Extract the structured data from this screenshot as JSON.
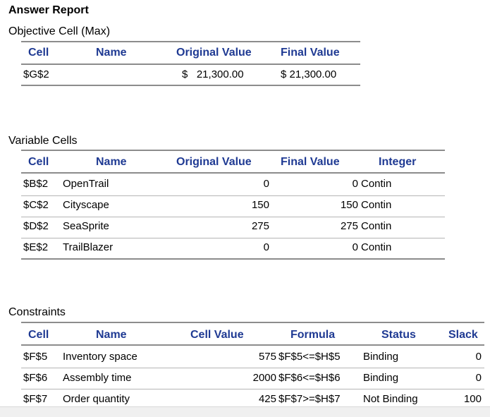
{
  "report": {
    "title": "Answer Report"
  },
  "objective": {
    "section_label": "Objective Cell (Max)",
    "headers": {
      "cell": "Cell",
      "name": "Name",
      "original": "Original Value",
      "final": "Final Value"
    },
    "rows": [
      {
        "cell": "$G$2",
        "name": "",
        "original": "$   21,300.00",
        "final": "$ 21,300.00"
      }
    ]
  },
  "variables": {
    "section_label": "Variable Cells",
    "headers": {
      "cell": "Cell",
      "name": "Name",
      "original": "Original Value",
      "final": "Final Value",
      "integer": "Integer"
    },
    "rows": [
      {
        "cell": "$B$2",
        "name": "OpenTrail",
        "original": "0",
        "final": "0",
        "integer": "Contin"
      },
      {
        "cell": "$C$2",
        "name": "Cityscape",
        "original": "150",
        "final": "150",
        "integer": "Contin"
      },
      {
        "cell": "$D$2",
        "name": "SeaSprite",
        "original": "275",
        "final": "275",
        "integer": "Contin"
      },
      {
        "cell": "$E$2",
        "name": "TrailBlazer",
        "original": "0",
        "final": "0",
        "integer": "Contin"
      }
    ]
  },
  "constraints": {
    "section_label": "Constraints",
    "headers": {
      "cell": "Cell",
      "name": "Name",
      "value": "Cell Value",
      "formula": "Formula",
      "status": "Status",
      "slack": "Slack"
    },
    "rows": [
      {
        "cell": "$F$5",
        "name": "Inventory space",
        "value": "575",
        "formula": "$F$5<=$H$5",
        "status": "Binding",
        "slack": "0"
      },
      {
        "cell": "$F$6",
        "name": "Assembly time",
        "value": "2000",
        "formula": "$F$6<=$H$6",
        "status": "Binding",
        "slack": "0"
      },
      {
        "cell": "$F$7",
        "name": "Order quantity",
        "value": "425",
        "formula": "$F$7>=$H$7",
        "status": "Not Binding",
        "slack": "100"
      }
    ]
  }
}
